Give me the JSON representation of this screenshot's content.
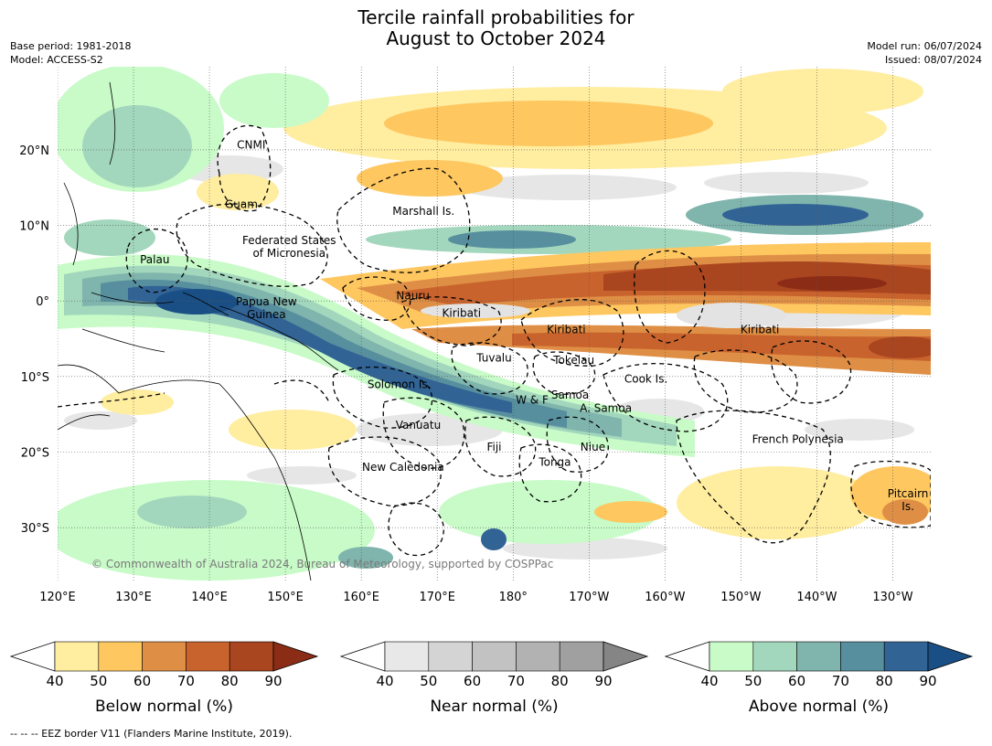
{
  "title_line1": "Tercile rainfall probabilities for",
  "title_line2": "August to October 2024",
  "meta_left": {
    "base_period": "Base period: 1981-2018",
    "model": "Model: ACCESS-S2"
  },
  "meta_right": {
    "model_run": "Model run: 06/07/2024",
    "issued": "Issued: 08/07/2024"
  },
  "copyright": "© Commonwealth of Australia 2024, Bureau of Meteorology, supported by COSPPac",
  "footer": "--  --  -- EEZ border V11 (Flanders Marine Institute, 2019).",
  "map": {
    "lon_range": [
      120,
      235
    ],
    "lat_range": [
      -37,
      31
    ],
    "lon_ticks": [
      {
        "lon": 120,
        "label": "120°E"
      },
      {
        "lon": 130,
        "label": "130°E"
      },
      {
        "lon": 140,
        "label": "140°E"
      },
      {
        "lon": 150,
        "label": "150°E"
      },
      {
        "lon": 160,
        "label": "160°E"
      },
      {
        "lon": 170,
        "label": "170°E"
      },
      {
        "lon": 180,
        "label": "180°"
      },
      {
        "lon": 190,
        "label": "170°W"
      },
      {
        "lon": 200,
        "label": "160°W"
      },
      {
        "lon": 210,
        "label": "150°W"
      },
      {
        "lon": 220,
        "label": "140°W"
      },
      {
        "lon": 230,
        "label": "130°W"
      }
    ],
    "lat_ticks": [
      {
        "lat": 20,
        "label": "20°N"
      },
      {
        "lat": 10,
        "label": "10°N"
      },
      {
        "lat": 0,
        "label": "0°"
      },
      {
        "lat": -10,
        "label": "10°S"
      },
      {
        "lat": -20,
        "label": "20°S"
      },
      {
        "lat": -30,
        "label": "30°S"
      }
    ],
    "places": [
      {
        "lines": [
          "CNMI"
        ],
        "lon": 145.5,
        "lat": 20.2
      },
      {
        "lines": [
          "Guam"
        ],
        "lon": 144.2,
        "lat": 12.3
      },
      {
        "lines": [
          "Marshall Is."
        ],
        "lon": 168.2,
        "lat": 11.4
      },
      {
        "lines": [
          "Federated States",
          "of Micronesia"
        ],
        "lon": 150.5,
        "lat": 7.5
      },
      {
        "lines": [
          "Palau"
        ],
        "lon": 132.8,
        "lat": 5.0
      },
      {
        "lines": [
          "Nauru"
        ],
        "lon": 166.8,
        "lat": 0.2
      },
      {
        "lines": [
          "Papua New",
          "Guinea"
        ],
        "lon": 147.5,
        "lat": -0.6
      },
      {
        "lines": [
          "Kiribati"
        ],
        "lon": 173.2,
        "lat": -2.1
      },
      {
        "lines": [
          "Kiribati"
        ],
        "lon": 187.0,
        "lat": -4.3
      },
      {
        "lines": [
          "Kiribati"
        ],
        "lon": 212.5,
        "lat": -4.3
      },
      {
        "lines": [
          "Tuvalu"
        ],
        "lon": 177.5,
        "lat": -8.0
      },
      {
        "lines": [
          "Tokelau"
        ],
        "lon": 188.0,
        "lat": -8.3
      },
      {
        "lines": [
          "Solomon Is."
        ],
        "lon": 165.0,
        "lat": -11.5
      },
      {
        "lines": [
          "Cook Is."
        ],
        "lon": 197.5,
        "lat": -10.8
      },
      {
        "lines": [
          "Samoa"
        ],
        "lon": 187.5,
        "lat": -12.9
      },
      {
        "lines": [
          "W & F"
        ],
        "lon": 182.5,
        "lat": -13.6
      },
      {
        "lines": [
          "A. Samoa"
        ],
        "lon": 192.2,
        "lat": -14.7
      },
      {
        "lines": [
          "Vanuatu"
        ],
        "lon": 167.5,
        "lat": -16.9
      },
      {
        "lines": [
          "French Polynesia"
        ],
        "lon": 217.5,
        "lat": -18.8
      },
      {
        "lines": [
          "Fiji"
        ],
        "lon": 177.5,
        "lat": -19.8
      },
      {
        "lines": [
          "Niue"
        ],
        "lon": 190.5,
        "lat": -19.8
      },
      {
        "lines": [
          "Tonga"
        ],
        "lon": 185.5,
        "lat": -21.8
      },
      {
        "lines": [
          "New Caledonia"
        ],
        "lon": 165.5,
        "lat": -22.5
      },
      {
        "lines": [
          "Pitcairn",
          "Is."
        ],
        "lon": 232.0,
        "lat": -26.0
      }
    ]
  },
  "colorbars": [
    {
      "name": "below-normal",
      "title": "Below normal (%)",
      "ticks": [
        "40",
        "50",
        "60",
        "70",
        "80",
        "90"
      ],
      "colors": [
        "#ffffff",
        "#ffeda0",
        "#fec760",
        "#df8f45",
        "#c9632d",
        "#a9451f",
        "#8b2c16"
      ]
    },
    {
      "name": "near-normal",
      "title": "Near normal (%)",
      "ticks": [
        "40",
        "50",
        "60",
        "70",
        "80",
        "90"
      ],
      "colors": [
        "#ffffff",
        "#e8e8e8",
        "#d4d4d4",
        "#c2c2c2",
        "#b2b2b2",
        "#a0a0a0",
        "#858585"
      ]
    },
    {
      "name": "above-normal",
      "title": "Above normal (%)",
      "ticks": [
        "40",
        "50",
        "60",
        "70",
        "80",
        "90"
      ],
      "colors": [
        "#ffffff",
        "#c8fbc8",
        "#a3d7bd",
        "#7fb5ad",
        "#578f9e",
        "#326395",
        "#1a4f86"
      ]
    }
  ],
  "colors": {
    "land_line": "#000000",
    "gridline": "#555555",
    "eez_line": "#000000"
  }
}
